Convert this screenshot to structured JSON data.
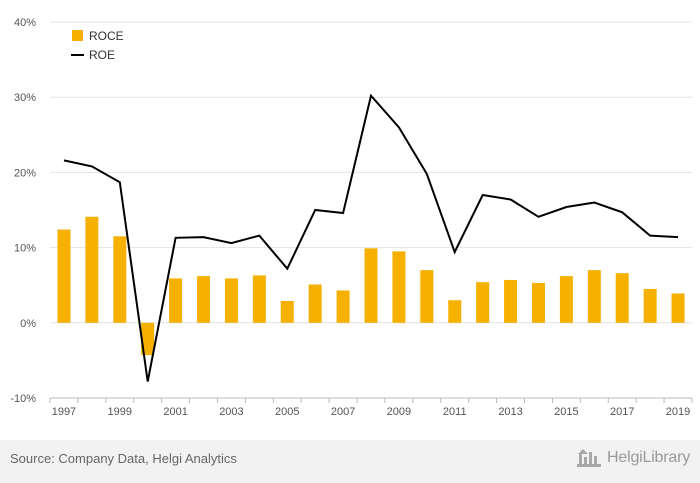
{
  "chart_data": {
    "type": "bar",
    "x": [
      1997,
      1998,
      1999,
      2000,
      2001,
      2002,
      2003,
      2004,
      2005,
      2006,
      2007,
      2008,
      2009,
      2010,
      2011,
      2012,
      2013,
      2014,
      2015,
      2016,
      2017,
      2018,
      2019
    ],
    "x_tick_labels": [
      "1997",
      "1999",
      "2001",
      "2003",
      "2005",
      "2007",
      "2009",
      "2011",
      "2013",
      "2015",
      "2017",
      "2019"
    ],
    "y_tick_labels": [
      "40%",
      "30%",
      "20%",
      "10%",
      "0%",
      "-10%"
    ],
    "ylim": [
      -10,
      40
    ],
    "y_unit": "%",
    "grid": true,
    "legend_position": "top-left",
    "series": [
      {
        "name": "ROCE",
        "type": "bar",
        "color": "#f5b000",
        "values": [
          12.4,
          14.1,
          11.5,
          -4.3,
          5.9,
          6.2,
          5.9,
          6.3,
          2.9,
          5.1,
          4.3,
          9.9,
          9.5,
          7.0,
          3.0,
          5.4,
          5.7,
          5.3,
          6.2,
          7.0,
          6.6,
          4.5,
          3.9
        ]
      },
      {
        "name": "ROE",
        "type": "line",
        "color": "#000000",
        "values": [
          21.6,
          20.8,
          18.7,
          -7.8,
          11.3,
          11.4,
          10.6,
          11.6,
          7.2,
          15.0,
          14.6,
          30.2,
          26.0,
          19.8,
          9.4,
          17.0,
          16.4,
          14.1,
          15.4,
          16.0,
          14.7,
          11.6,
          11.4
        ]
      }
    ]
  },
  "footer": {
    "source": "Source: Company Data, Helgi Analytics",
    "brand": "HelgiLibrary"
  }
}
